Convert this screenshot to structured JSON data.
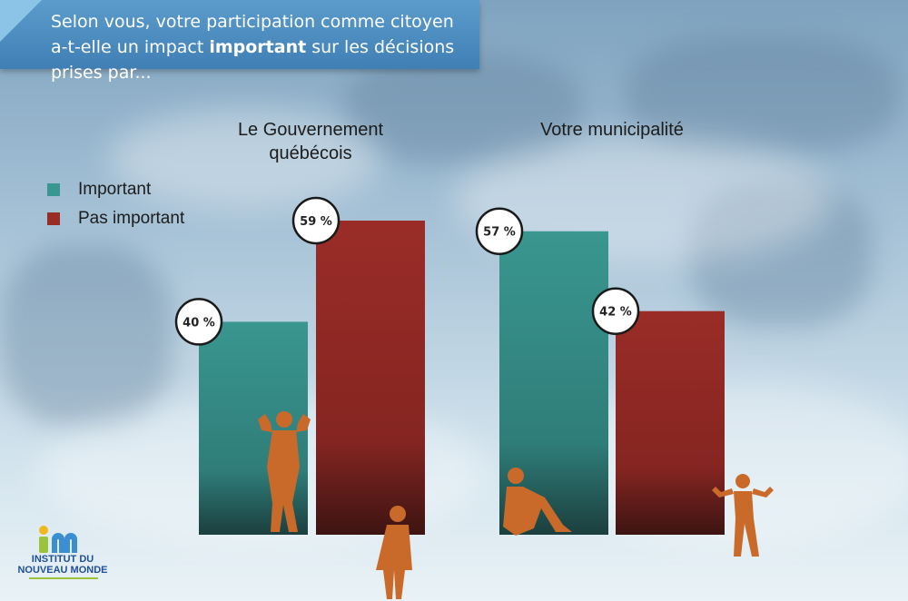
{
  "header": {
    "text_before": "Selon vous, votre participation comme citoyen a-t-elle un impact ",
    "text_bold": "important",
    "text_after": " sur les décisions prises par..."
  },
  "legend": [
    {
      "label": "Important",
      "color": "#3a9690"
    },
    {
      "label": "Pas important",
      "color": "#9a2c27"
    }
  ],
  "logo": {
    "line1": "INSTITUT DU",
    "line2": "NOUVEAU MONDE"
  },
  "chart_data": {
    "type": "bar",
    "categories": [
      "Le Gouvernement québécois",
      "Votre municipalité"
    ],
    "category_lines": [
      [
        "Le Gouvernement",
        "québécois"
      ],
      [
        "Votre municipalité"
      ]
    ],
    "series": [
      {
        "name": "Important",
        "values": [
          40,
          57
        ],
        "labels": [
          "40 %",
          "57 %"
        ]
      },
      {
        "name": "Pas important",
        "values": [
          59,
          42
        ],
        "labels": [
          "59 %",
          "42 %"
        ]
      }
    ],
    "ylim": [
      0,
      59
    ],
    "colors": {
      "Important": "#3a9690",
      "Pas important": "#9a2c27"
    },
    "legend_position": "left",
    "grid": false
  }
}
